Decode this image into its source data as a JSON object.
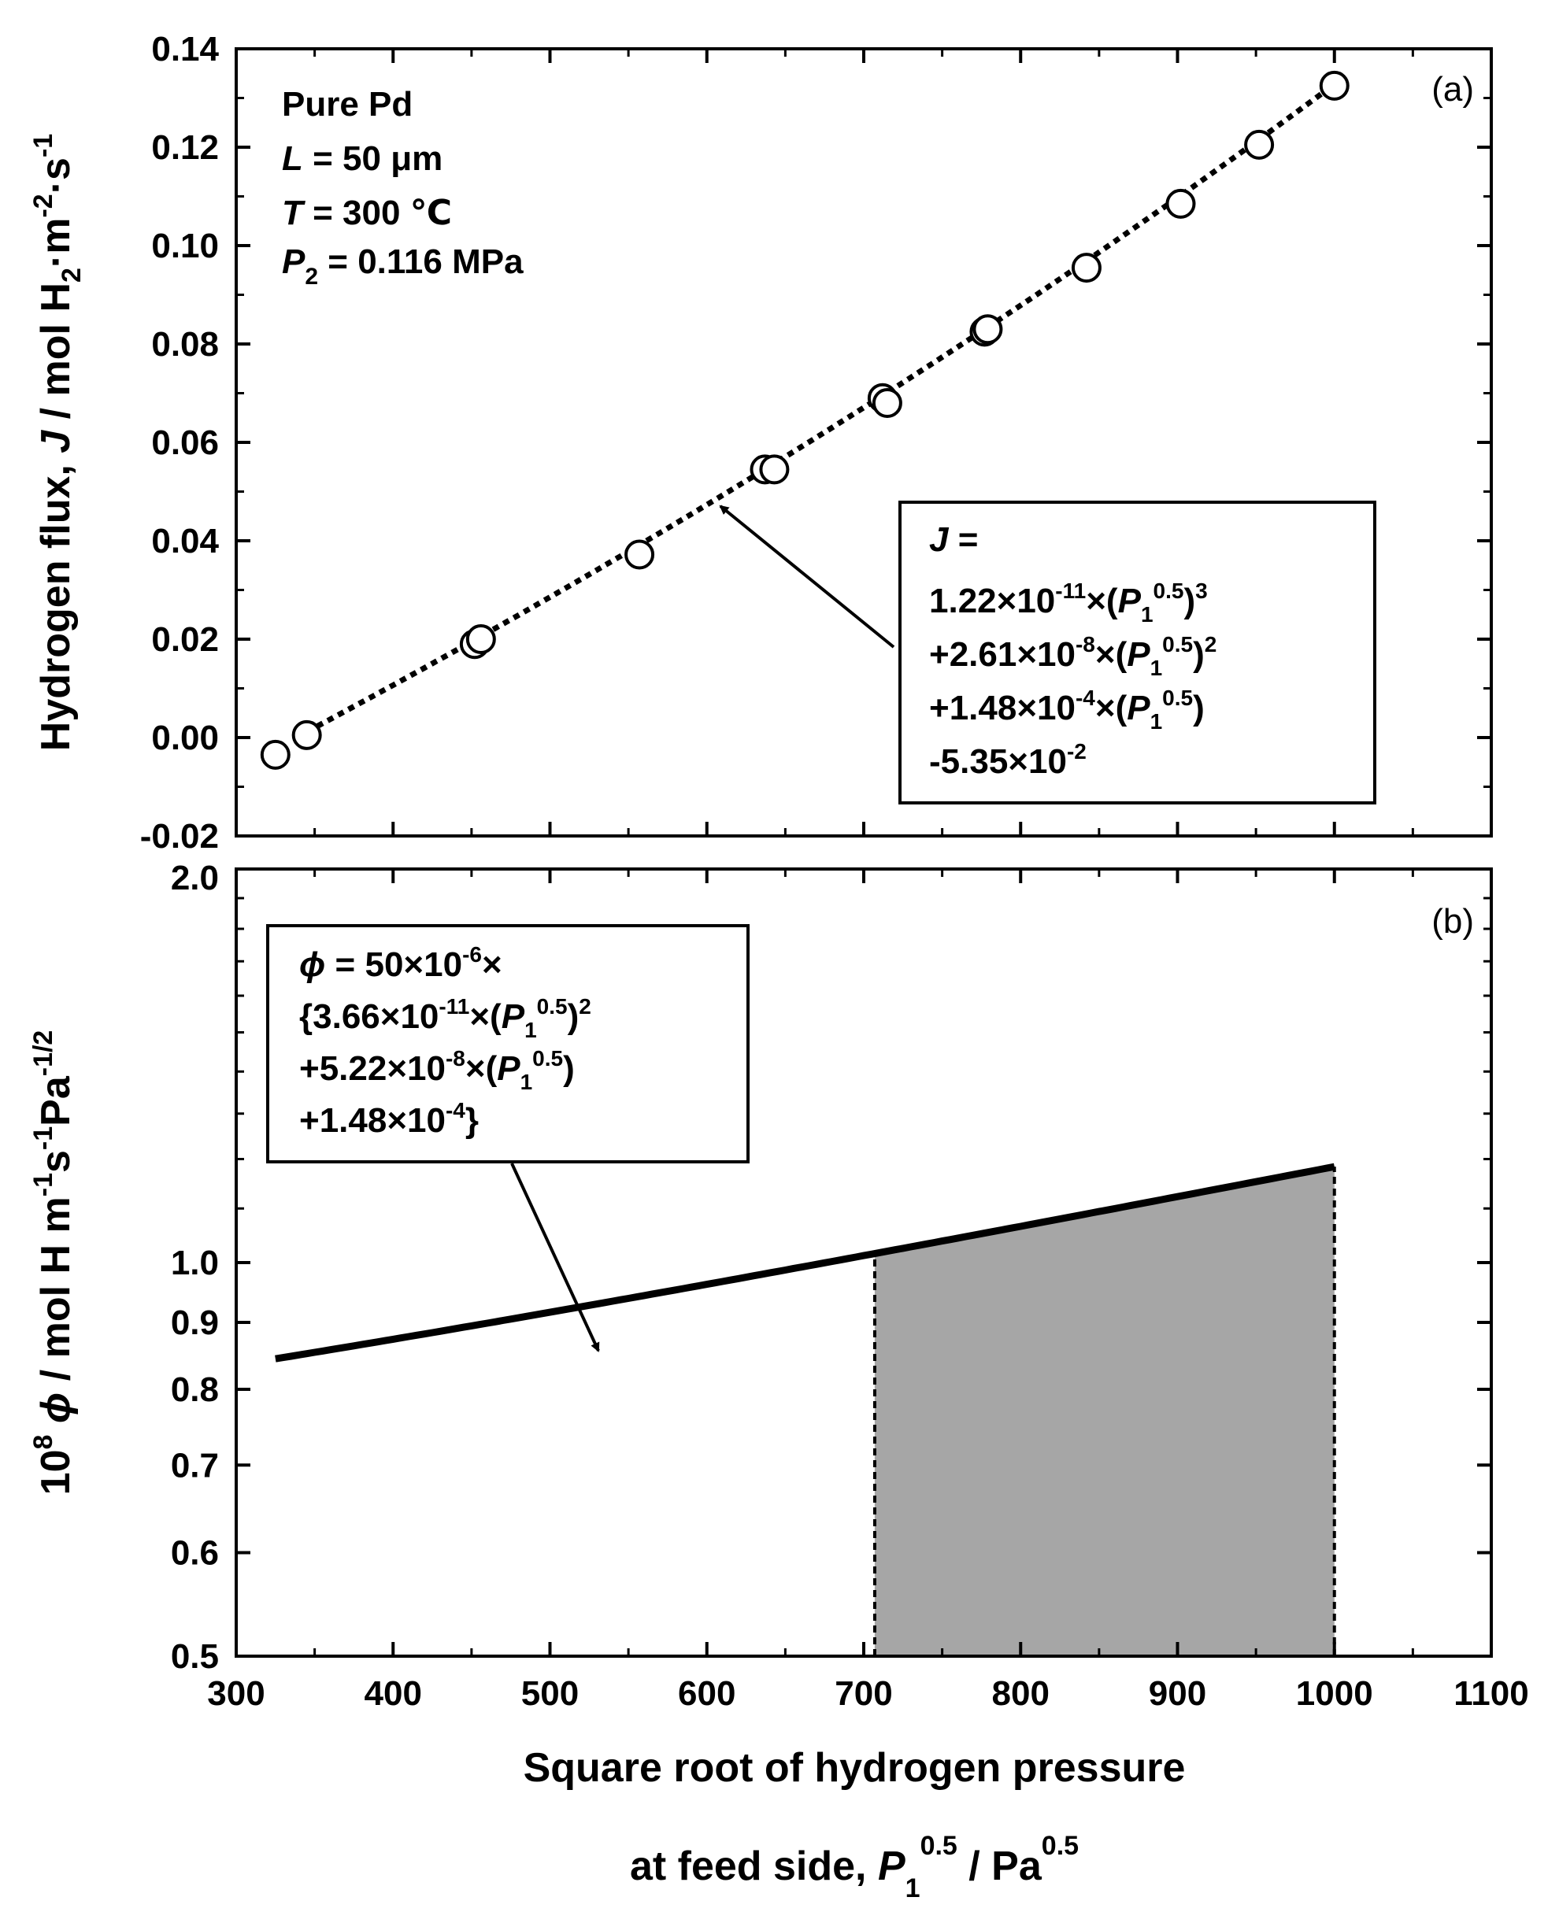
{
  "chart_data": [
    {
      "panel": "(a)",
      "type": "scatter",
      "ylabel": "Hydrogen flux, J / mol H2·m-2·s-1",
      "xlim": [
        300,
        1100
      ],
      "ylim": [
        -0.02,
        0.14
      ],
      "xticks": [
        300,
        400,
        500,
        600,
        700,
        800,
        900,
        1000,
        1100
      ],
      "yticks": [
        "-0.02",
        "0.00",
        "0.02",
        "0.04",
        "0.06",
        "0.08",
        "0.10",
        "0.12",
        "0.14"
      ],
      "info": {
        "material": "Pure Pd",
        "thickness": "L = 50 μm",
        "temperature": "T = 300 ℃",
        "pressure": "P2 = 0.116 MPa"
      },
      "equation": [
        "J =",
        "1.22×10-11×(P10.5)3",
        "+2.61×10-8×(P10.5)2",
        "+1.48×10-4×(P10.5)",
        "-5.35×10-2"
      ],
      "points": [
        {
          "x": 325,
          "y": -0.0035
        },
        {
          "x": 345,
          "y": 0.0005
        },
        {
          "x": 452,
          "y": 0.019
        },
        {
          "x": 456,
          "y": 0.02
        },
        {
          "x": 557,
          "y": 0.0372
        },
        {
          "x": 637,
          "y": 0.0545
        },
        {
          "x": 643,
          "y": 0.0545
        },
        {
          "x": 712,
          "y": 0.069
        },
        {
          "x": 715,
          "y": 0.068
        },
        {
          "x": 777,
          "y": 0.0825
        },
        {
          "x": 779,
          "y": 0.083
        },
        {
          "x": 842,
          "y": 0.0955
        },
        {
          "x": 902,
          "y": 0.1085
        },
        {
          "x": 952,
          "y": 0.1205
        },
        {
          "x": 1000,
          "y": 0.1325
        }
      ],
      "fit": {
        "a3": 1.22e-11,
        "a2": 2.61e-08,
        "a1": 0.000148,
        "a0": -0.0535,
        "x_range": [
          345,
          1000
        ],
        "style": "dotted"
      }
    },
    {
      "panel": "(b)",
      "type": "line",
      "ylabel": "10^8 φ / mol H m-1s-1Pa-1/2",
      "xlabel": "Square root of hydrogen pressure at feed side, P1^0.5 / Pa^0.5",
      "xlim": [
        300,
        1100
      ],
      "ylim": [
        0.5,
        2.0
      ],
      "yscale": "log",
      "xticks": [
        300,
        400,
        500,
        600,
        700,
        800,
        900,
        1000,
        1100
      ],
      "yticks": [
        "0.5",
        "0.6",
        "0.7",
        "0.8",
        "0.9",
        "1.0",
        "2.0"
      ],
      "equation": [
        "φ = 50×10-6×",
        "{3.66×10-11×(P10.5)2",
        "+5.22×10-8×(P10.5)",
        "+1.48×10-4}"
      ],
      "curve": {
        "b2": 3.66e-11,
        "b1": 5.22e-08,
        "b0": 0.000148,
        "thickness": 5e-05,
        "scale": 100000000.0,
        "x_range": [
          325,
          1000
        ]
      },
      "shaded_region": {
        "x_range": [
          707,
          1000
        ],
        "color": "#a6a6a6"
      }
    }
  ],
  "xlabel_line1": "Square root of hydrogen pressure",
  "xlabel_line2": "at feed side, P1^0.5 / Pa^0.5"
}
